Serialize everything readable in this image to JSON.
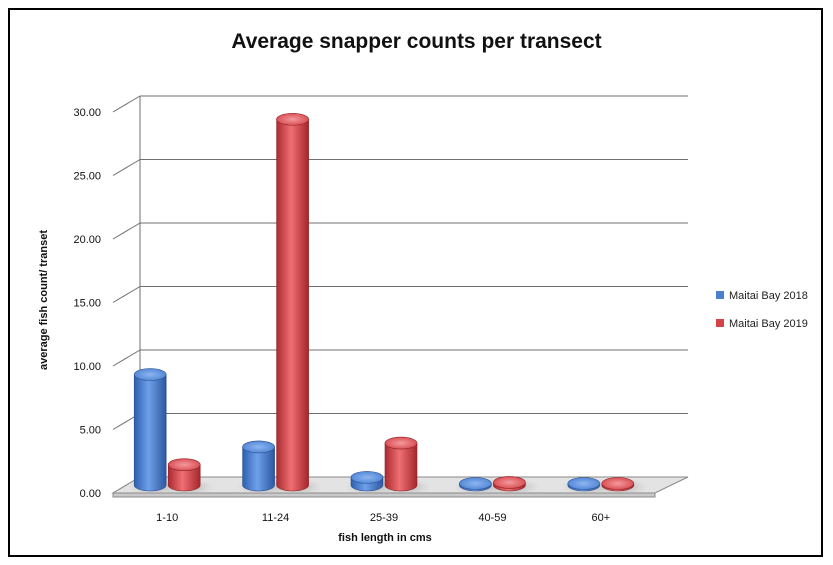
{
  "chart_data": {
    "type": "bar",
    "title": "Average snapper counts per transect",
    "xlabel": "fish length in cms",
    "ylabel": "average fish count/ transet",
    "categories": [
      "1-10",
      "11-24",
      "25-39",
      "40-59",
      "60+"
    ],
    "ylim": [
      0,
      30
    ],
    "yticks": [
      "0.00",
      "5.00",
      "10.00",
      "15.00",
      "20.00",
      "25.00",
      "30.00"
    ],
    "grid": true,
    "legend_position": "right",
    "series": [
      {
        "name": "Maitai Bay 2018",
        "color": "#4a7fd0",
        "values": [
          8.7,
          3.0,
          0.6,
          0.1,
          0.1
        ]
      },
      {
        "name": "Maitai Bay 2019",
        "color": "#d54349",
        "values": [
          1.6,
          28.8,
          3.3,
          0.2,
          0.1
        ]
      }
    ]
  }
}
